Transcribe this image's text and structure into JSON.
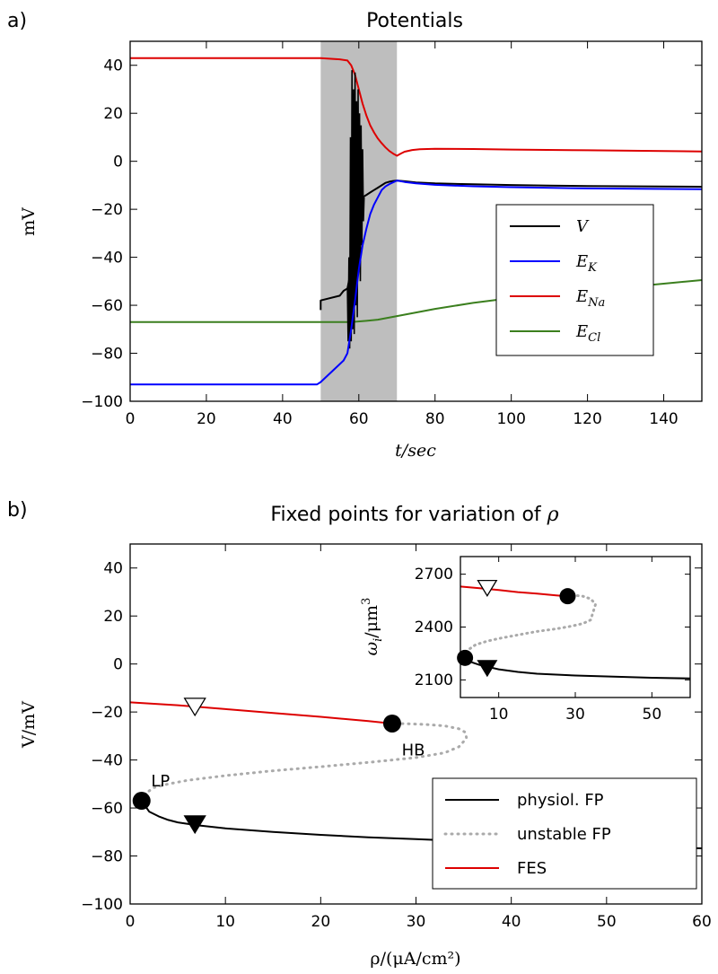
{
  "chart_data": [
    {
      "panel_label": "a)",
      "type": "line",
      "title": "Potentials",
      "xlabel": "t/sec",
      "ylabel": "mV",
      "xlim": [
        0,
        150
      ],
      "ylim": [
        -100,
        50
      ],
      "xticks": [
        0,
        20,
        40,
        60,
        80,
        100,
        120,
        140
      ],
      "yticks": [
        -100,
        -80,
        -60,
        -40,
        -20,
        0,
        20,
        40
      ],
      "grid": false,
      "legend_position": "center-right",
      "shaded_interval": [
        50,
        70
      ],
      "shade_color": "#bebebe",
      "series": [
        {
          "name": "V",
          "color": "#000000",
          "x": [
            50,
            50,
            55,
            56,
            57,
            58,
            59,
            60,
            61,
            62,
            63,
            64,
            65,
            66,
            67,
            68,
            69,
            70,
            72,
            75,
            80,
            90,
            100,
            110,
            120,
            130,
            140,
            150
          ],
          "y": [
            -62,
            -58,
            -56,
            -54,
            -53,
            -45,
            -30,
            -18,
            -15,
            -14,
            -13,
            -12,
            -11,
            -10,
            -9,
            -8.5,
            -8.2,
            -8,
            -8.3,
            -8.8,
            -9.2,
            -9.6,
            -9.9,
            -10.1,
            -10.3,
            -10.4,
            -10.5,
            -10.6
          ]
        },
        {
          "name": "E_K",
          "color": "#0000ff",
          "x": [
            0,
            49,
            50,
            52,
            54,
            56,
            57,
            58,
            59,
            60,
            61,
            62,
            63,
            64,
            65,
            66,
            67,
            68,
            70,
            72,
            75,
            80,
            90,
            100,
            120,
            150
          ],
          "y": [
            -93,
            -93,
            -92,
            -89,
            -86,
            -83,
            -80,
            -70,
            -58,
            -45,
            -35,
            -28,
            -22,
            -18,
            -15,
            -12,
            -10.5,
            -9.5,
            -8,
            -8.6,
            -9.2,
            -9.8,
            -10.4,
            -10.8,
            -11.3,
            -11.6
          ]
        },
        {
          "name": "E_Na",
          "color": "#dd0000",
          "x": [
            0,
            50,
            55,
            57,
            58,
            59,
            60,
            61,
            62,
            63,
            64,
            65,
            66,
            67,
            68,
            69,
            70,
            71,
            72,
            74,
            76,
            80,
            90,
            100,
            120,
            150
          ],
          "y": [
            43,
            43,
            42.5,
            42,
            40,
            36,
            30,
            24,
            19,
            15,
            12,
            9.5,
            7.5,
            5.8,
            4.3,
            3.2,
            2.3,
            3.2,
            4,
            4.7,
            5,
            5.2,
            5.1,
            4.9,
            4.6,
            4.1
          ]
        },
        {
          "name": "E_Cl",
          "color": "#3b7f1e",
          "x": [
            0,
            50,
            58,
            62,
            65,
            70,
            80,
            90,
            100,
            110,
            120,
            130,
            140,
            150
          ],
          "y": [
            -67,
            -67,
            -67,
            -66.5,
            -66,
            -64.5,
            -61.5,
            -59,
            -57,
            -55.5,
            -54,
            -52.5,
            -51,
            -49.5
          ]
        }
      ],
      "spike_burst": {
        "x": [
          57,
          57.2,
          57.4,
          57.6,
          57.8,
          58.0,
          58.2,
          58.4,
          58.6,
          58.8,
          59.0,
          59.2,
          59.4,
          59.6,
          59.8,
          60.0,
          60.2,
          60.4,
          60.6,
          60.8,
          61.0,
          61.2,
          61.4
        ],
        "y": [
          -53,
          -75,
          -40,
          -78,
          10,
          -75,
          38,
          -70,
          30,
          -72,
          37,
          -60,
          25,
          -65,
          30,
          -45,
          20,
          -50,
          15,
          -35,
          5,
          -25,
          -15
        ]
      },
      "legend": [
        {
          "label": "V",
          "color": "#000000"
        },
        {
          "label": "E",
          "sub": "K",
          "color": "#0000ff"
        },
        {
          "label": "E",
          "sub": "Na",
          "color": "#dd0000"
        },
        {
          "label": "E",
          "sub": "Cl",
          "color": "#3b7f1e"
        }
      ]
    },
    {
      "panel_label": "b)",
      "type": "line",
      "title_prefix": "Fixed points for variation of ",
      "title_symbol": "ρ",
      "xlabel": "ρ/(μA/cm²)",
      "ylabel": "V/mV",
      "xlim": [
        0,
        60
      ],
      "ylim": [
        -100,
        50
      ],
      "xticks": [
        0,
        10,
        20,
        30,
        40,
        50,
        60
      ],
      "yticks": [
        -100,
        -80,
        -60,
        -40,
        -20,
        0,
        20,
        40
      ],
      "grid": false,
      "legend_position": "lower-right",
      "series": [
        {
          "name": "physiol. FP",
          "color": "#000000",
          "style": "solid",
          "x": [
            1.2,
            2,
            3,
            4,
            5,
            7,
            10,
            15,
            20,
            25,
            30,
            35,
            40,
            45,
            50,
            55,
            60
          ],
          "y": [
            -57,
            -61.5,
            -63.5,
            -65,
            -66,
            -67.2,
            -68.5,
            -70,
            -71.2,
            -72.2,
            -73,
            -73.8,
            -74.5,
            -75.2,
            -75.8,
            -76.3,
            -76.8
          ]
        },
        {
          "name": "unstable FP",
          "color": "#aaaaaa",
          "style": "dotted",
          "x": [
            1.2,
            1.6,
            2.5,
            4,
            6,
            10,
            15,
            20,
            25,
            30,
            33,
            34.5,
            35.3,
            35.2,
            34.5,
            33,
            31,
            29,
            27.5
          ],
          "y": [
            -57,
            -54,
            -51.5,
            -50,
            -48.5,
            -46.5,
            -44.5,
            -42.8,
            -41,
            -39,
            -37,
            -34.5,
            -31,
            -28.5,
            -27,
            -25.8,
            -25.2,
            -24.9,
            -24.8
          ]
        },
        {
          "name": "FES",
          "color": "#dd0000",
          "style": "solid",
          "x": [
            0,
            5,
            10,
            15,
            20,
            25,
            27.5
          ],
          "y": [
            -16,
            -17.2,
            -18.8,
            -20.4,
            -22,
            -23.8,
            -24.8
          ]
        }
      ],
      "markers": [
        {
          "type": "circle",
          "x": 1.2,
          "y": -57
        },
        {
          "type": "circle",
          "x": 27.5,
          "y": -24.8
        },
        {
          "type": "triangle-down-open",
          "x": 6.8,
          "y": -17.5
        },
        {
          "type": "triangle-down-filled",
          "x": 6.8,
          "y": -66.5
        }
      ],
      "annotations": [
        {
          "text": "LP",
          "x": 2.2,
          "y": -51
        },
        {
          "text": "HB",
          "x": 28.5,
          "y": -38
        }
      ],
      "legend": [
        {
          "label": "physiol. FP",
          "color": "#000000",
          "style": "solid"
        },
        {
          "label": "unstable FP",
          "color": "#aaaaaa",
          "style": "dotted"
        },
        {
          "label": "FES",
          "color": "#dd0000",
          "style": "solid"
        }
      ],
      "inset": {
        "ylabel_prefix": "ω",
        "ylabel_sub": "i",
        "ylabel_unit": "/μm",
        "ylabel_sup": "3",
        "xlim": [
          0,
          60
        ],
        "ylim": [
          2000,
          2800
        ],
        "xticks": [
          10,
          30,
          50
        ],
        "yticks": [
          2100,
          2400,
          2700
        ],
        "series": [
          {
            "name": "physiol. FP",
            "color": "#000000",
            "style": "solid",
            "x": [
              1.2,
              3,
              5,
              7,
              10,
              15,
              20,
              30,
              40,
              50,
              60
            ],
            "y": [
              2225,
              2200,
              2185,
              2175,
              2160,
              2145,
              2135,
              2125,
              2118,
              2112,
              2108
            ]
          },
          {
            "name": "unstable FP",
            "color": "#aaaaaa",
            "style": "dotted",
            "x": [
              1.2,
              2,
              4,
              7,
              10,
              15,
              20,
              25,
              29,
              32,
              34,
              35.3,
              34,
              32,
              30,
              28
            ],
            "y": [
              2225,
              2270,
              2300,
              2320,
              2335,
              2355,
              2375,
              2390,
              2405,
              2420,
              2440,
              2530,
              2560,
              2575,
              2580,
              2575
            ]
          },
          {
            "name": "FES",
            "color": "#dd0000",
            "style": "solid",
            "x": [
              0,
              5,
              10,
              15,
              20,
              25,
              28
            ],
            "y": [
              2630,
              2620,
              2610,
              2598,
              2590,
              2580,
              2575
            ]
          }
        ],
        "markers": [
          {
            "type": "circle",
            "x": 1.2,
            "y": 2225
          },
          {
            "type": "circle",
            "x": 28,
            "y": 2575
          },
          {
            "type": "triangle-down-open",
            "x": 7,
            "y": 2625
          },
          {
            "type": "triangle-down-filled",
            "x": 7,
            "y": 2170
          }
        ]
      }
    }
  ]
}
